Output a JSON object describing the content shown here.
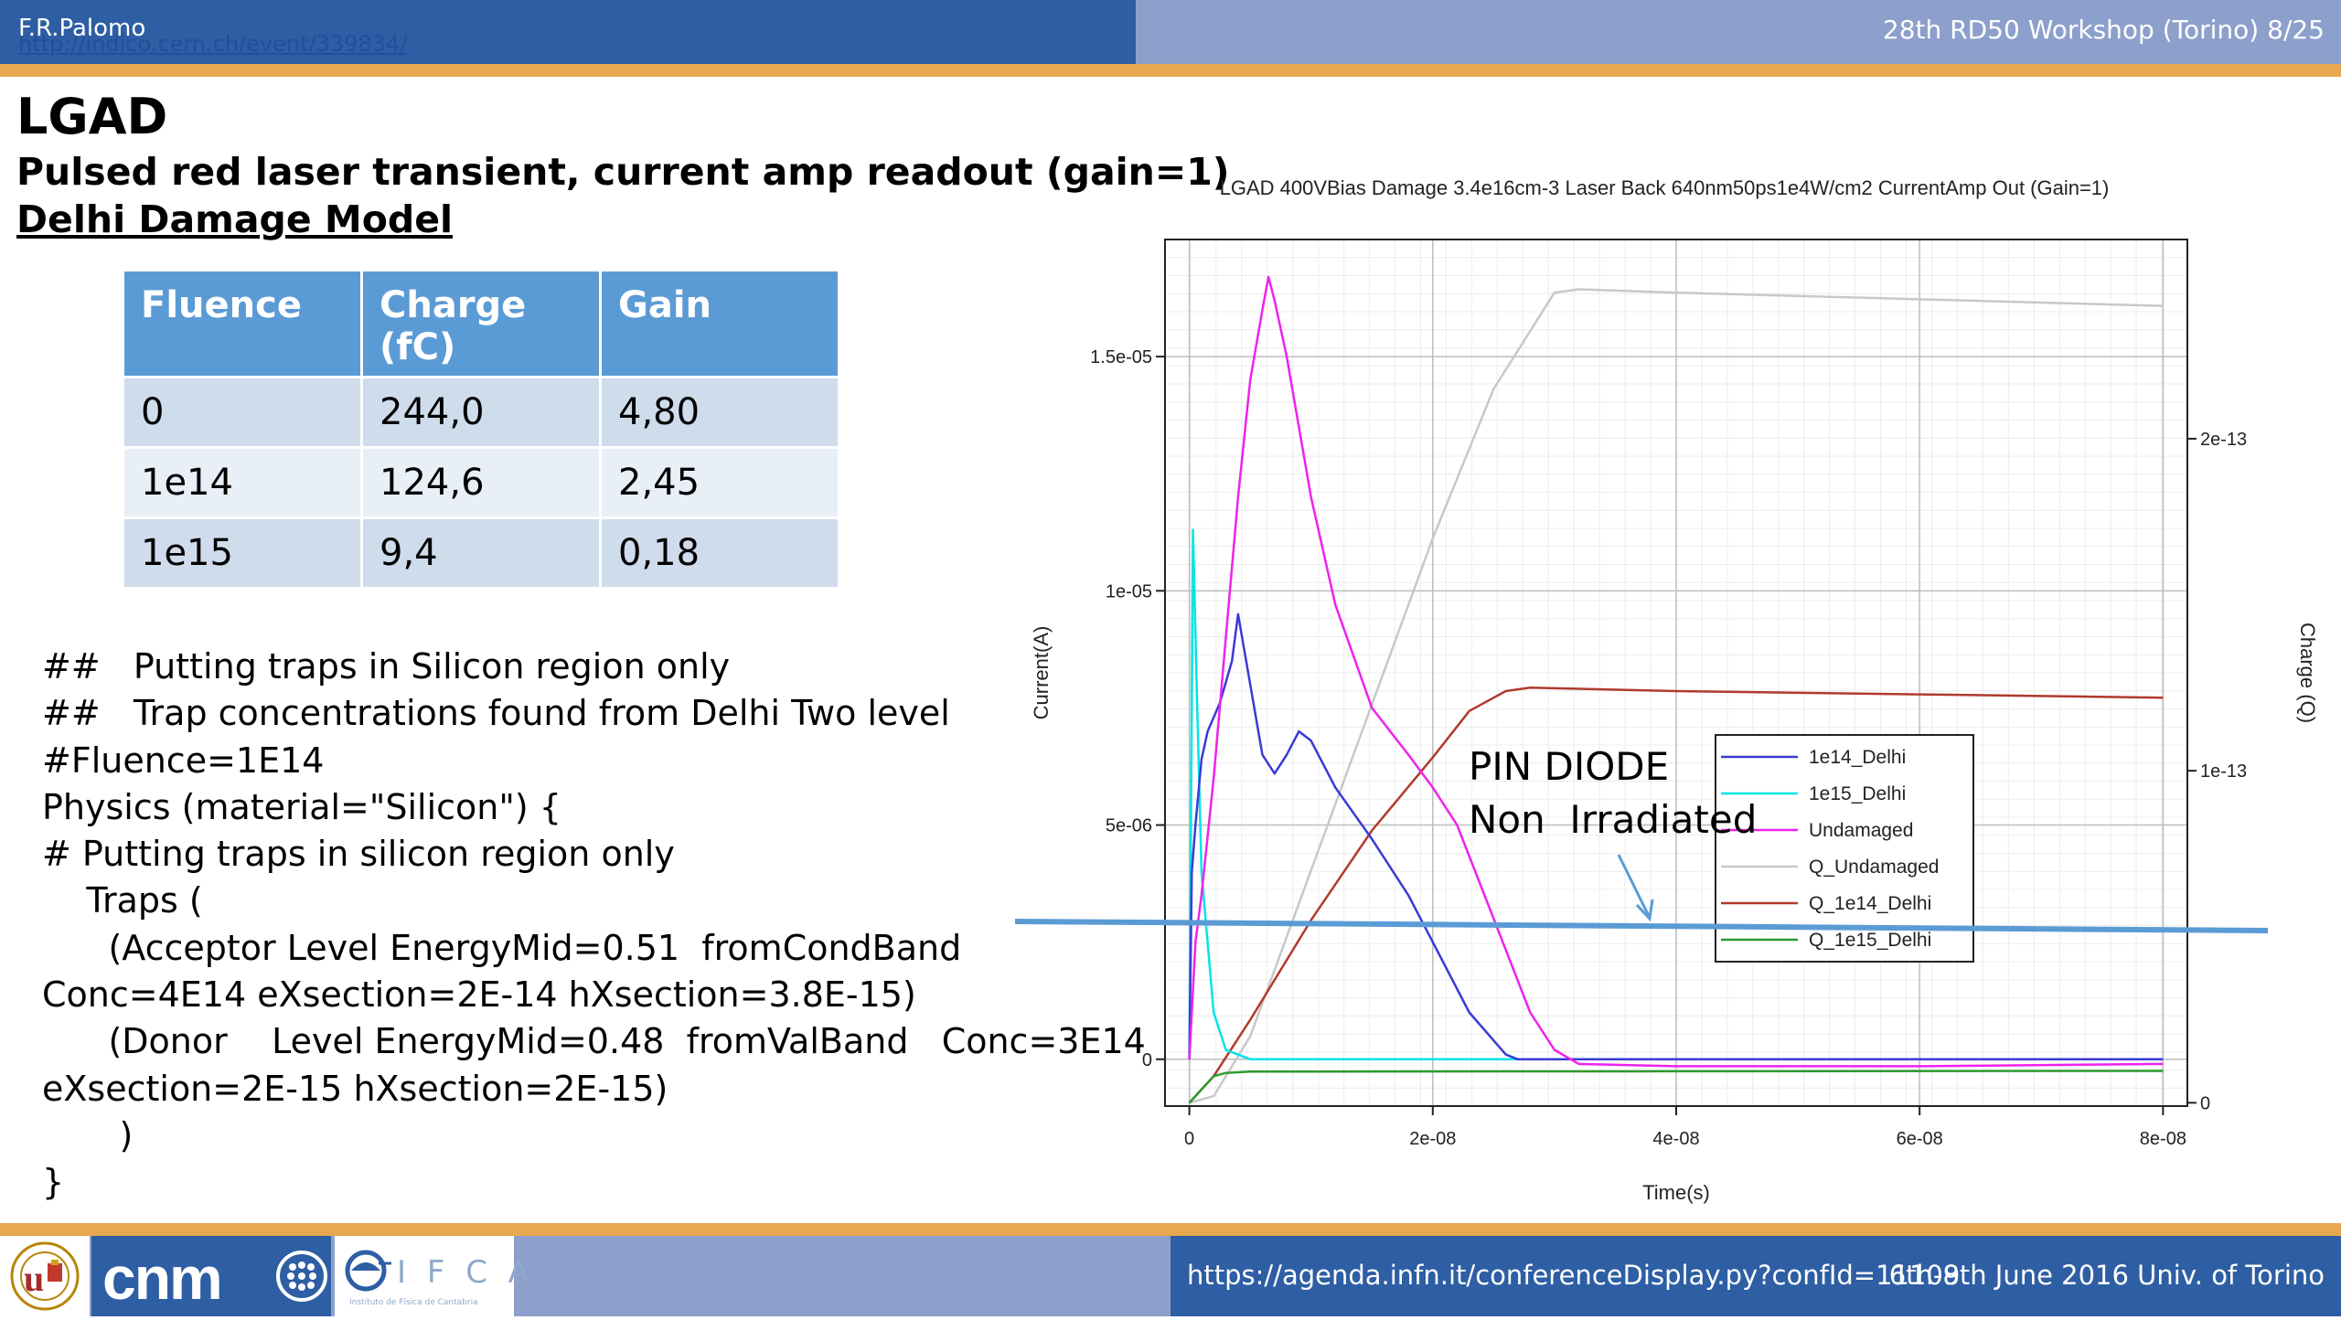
{
  "header": {
    "author": "F.R.Palomo",
    "link": "http://indico.cern.ch/event/339834/",
    "workshop": "28th RD50 Workshop (Torino) 8/25"
  },
  "slide": {
    "title": "LGAD",
    "subtitle": "Pulsed red laser transient, current amp readout (gain=1)",
    "damage_model": "Delhi Damage Model"
  },
  "table": {
    "headers": [
      "Fluence",
      "Charge (fC)",
      "Gain"
    ],
    "rows": [
      [
        "0",
        "244,0",
        "4,80"
      ],
      [
        "1e14",
        "124,6",
        "2,45"
      ],
      [
        "1e15",
        "9,4",
        "0,18"
      ]
    ]
  },
  "code_lines": [
    "##   Putting traps in Silicon region only",
    "##   Trap concentrations found from Delhi Two level",
    "#Fluence=1E14",
    "Physics (material=\"Silicon\") {",
    "# Putting traps in silicon region only",
    "    Traps (",
    "      (Acceptor Level EnergyMid=0.51  fromCondBand",
    "Conc=4E14 eXsection=2E-14 hXsection=3.8E-15)",
    "      (Donor    Level EnergyMid=0.48  fromValBand   Conc=3E14",
    "eXsection=2E-15 hXsection=2E-15)",
    "       )",
    "}"
  ],
  "annotation": {
    "line1": "PIN DIODE",
    "line2": "Non  Irradiated"
  },
  "footer": {
    "url": "https://agenda.infn.it/conferenceDisplay.py?confId=11109",
    "date": "6th-8th June  2016  Univ. of Torino",
    "logo_text": "cnm",
    "ifca_text": "I F C A",
    "ifca_sub": "Instituto de Física de Cantabria"
  },
  "colors": {
    "header_dark": "#2e5ea3",
    "header_light": "#8da0cc",
    "accent_stripe": "#e8a84f",
    "table_header": "#5b9bd5"
  },
  "chart_data": {
    "type": "line",
    "title": "LGAD 400VBias Damage 3.4e16cm-3 Laser Back 640nm50ps1e4W/cm2 CurrentAmp Out (Gain=1)",
    "xlabel": "Time(s)",
    "ylabel": "Current(A)",
    "y2label": "Charge (Q)",
    "xlim": [
      -2e-09,
      8.2e-08
    ],
    "ylim": [
      -1e-06,
      1.75e-05
    ],
    "y2lim": [
      -1e-15,
      2.6e-13
    ],
    "xticks": [
      0,
      2e-08,
      4e-08,
      6e-08,
      8e-08
    ],
    "xtick_labels": [
      "0",
      "2e-08",
      "4e-08",
      "6e-08",
      "8e-08"
    ],
    "yticks": [
      0,
      5e-06,
      1e-05,
      1.5e-05
    ],
    "ytick_labels": [
      "0",
      "5e-06",
      "1e-05",
      "1.5e-05"
    ],
    "y2ticks": [
      0,
      1e-13,
      2e-13
    ],
    "y2tick_labels": [
      "0",
      "1e-13",
      "2e-13"
    ],
    "grid": true,
    "legend_position": "center-right",
    "series": [
      {
        "name": "1e14_Delhi",
        "axis": "left",
        "color": "#3a3ad6",
        "x": [
          0,
          2e-10,
          5e-10,
          1e-09,
          1.5e-09,
          2.5e-09,
          3.5e-09,
          4e-09,
          5e-09,
          6e-09,
          7e-09,
          8e-09,
          9e-09,
          1e-08,
          1.2e-08,
          1.5e-08,
          1.8e-08,
          2e-08,
          2.3e-08,
          2.6e-08,
          2.7e-08,
          3e-08,
          4e-08,
          6e-08,
          8e-08
        ],
        "y": [
          0,
          4e-06,
          5e-06,
          6.4e-06,
          7e-06,
          7.6e-06,
          8.5e-06,
          9.5e-06,
          8e-06,
          6.5e-06,
          6.1e-06,
          6.5e-06,
          7e-06,
          6.8e-06,
          5.8e-06,
          4.7e-06,
          3.5e-06,
          2.5e-06,
          1e-06,
          1e-07,
          0,
          0,
          0,
          0,
          0
        ]
      },
      {
        "name": "1e15_Delhi",
        "axis": "left",
        "color": "#00e5e5",
        "x": [
          0,
          3e-10,
          6e-10,
          1e-09,
          2e-09,
          3e-09,
          5e-09,
          1e-08,
          4e-08,
          8e-08
        ],
        "y": [
          0,
          1.13e-05,
          8e-06,
          4e-06,
          1e-06,
          2e-07,
          0,
          0,
          0,
          0
        ]
      },
      {
        "name": "Undamaged",
        "axis": "left",
        "color": "#ee22ee",
        "x": [
          0,
          5e-10,
          1e-09,
          2e-09,
          3e-09,
          4e-09,
          5e-09,
          6e-09,
          6.5e-09,
          7e-09,
          8e-09,
          9e-09,
          1e-08,
          1.2e-08,
          1.5e-08,
          1.8e-08,
          2e-08,
          2.2e-08,
          2.5e-08,
          2.8e-08,
          3e-08,
          3.2e-08,
          4e-08,
          6e-08,
          8e-08
        ],
        "y": [
          0,
          2.5e-06,
          3.5e-06,
          6e-06,
          9e-06,
          1.2e-05,
          1.45e-05,
          1.6e-05,
          1.67e-05,
          1.62e-05,
          1.5e-05,
          1.35e-05,
          1.2e-05,
          9.7e-06,
          7.5e-06,
          6.5e-06,
          5.8e-06,
          5e-06,
          3e-06,
          1e-06,
          2e-07,
          -1e-07,
          -1.5e-07,
          -1.5e-07,
          -1e-07
        ]
      },
      {
        "name": "Q_Undamaged",
        "axis": "right",
        "color": "#c8c8c8",
        "x": [
          0,
          2e-09,
          5e-09,
          1e-08,
          1.5e-08,
          2e-08,
          2.5e-08,
          3e-08,
          3.2e-08,
          4e-08,
          6e-08,
          8e-08
        ],
        "y": [
          0,
          2e-15,
          2e-14,
          7e-14,
          1.2e-13,
          1.7e-13,
          2.15e-13,
          2.44e-13,
          2.45e-13,
          2.44e-13,
          2.42e-13,
          2.4e-13
        ]
      },
      {
        "name": "Q_1e14_Delhi",
        "axis": "right",
        "color": "#b03a2e",
        "x": [
          0,
          2e-09,
          5e-09,
          1e-08,
          1.5e-08,
          2e-08,
          2.3e-08,
          2.6e-08,
          2.8e-08,
          4e-08,
          6e-08,
          8e-08
        ],
        "y": [
          0,
          8e-15,
          2.5e-14,
          5.5e-14,
          8.2e-14,
          1.04e-13,
          1.18e-13,
          1.24e-13,
          1.25e-13,
          1.24e-13,
          1.23e-13,
          1.22e-13
        ]
      },
      {
        "name": "Q_1e15_Delhi",
        "axis": "right",
        "color": "#2e9a2e",
        "x": [
          0,
          1e-09,
          2e-09,
          3e-09,
          5e-09,
          1e-08,
          4e-08,
          8e-08
        ],
        "y": [
          0,
          4e-15,
          8e-15,
          9e-15,
          9.4e-15,
          9.4e-15,
          9.5e-15,
          9.6e-15
        ]
      }
    ]
  }
}
